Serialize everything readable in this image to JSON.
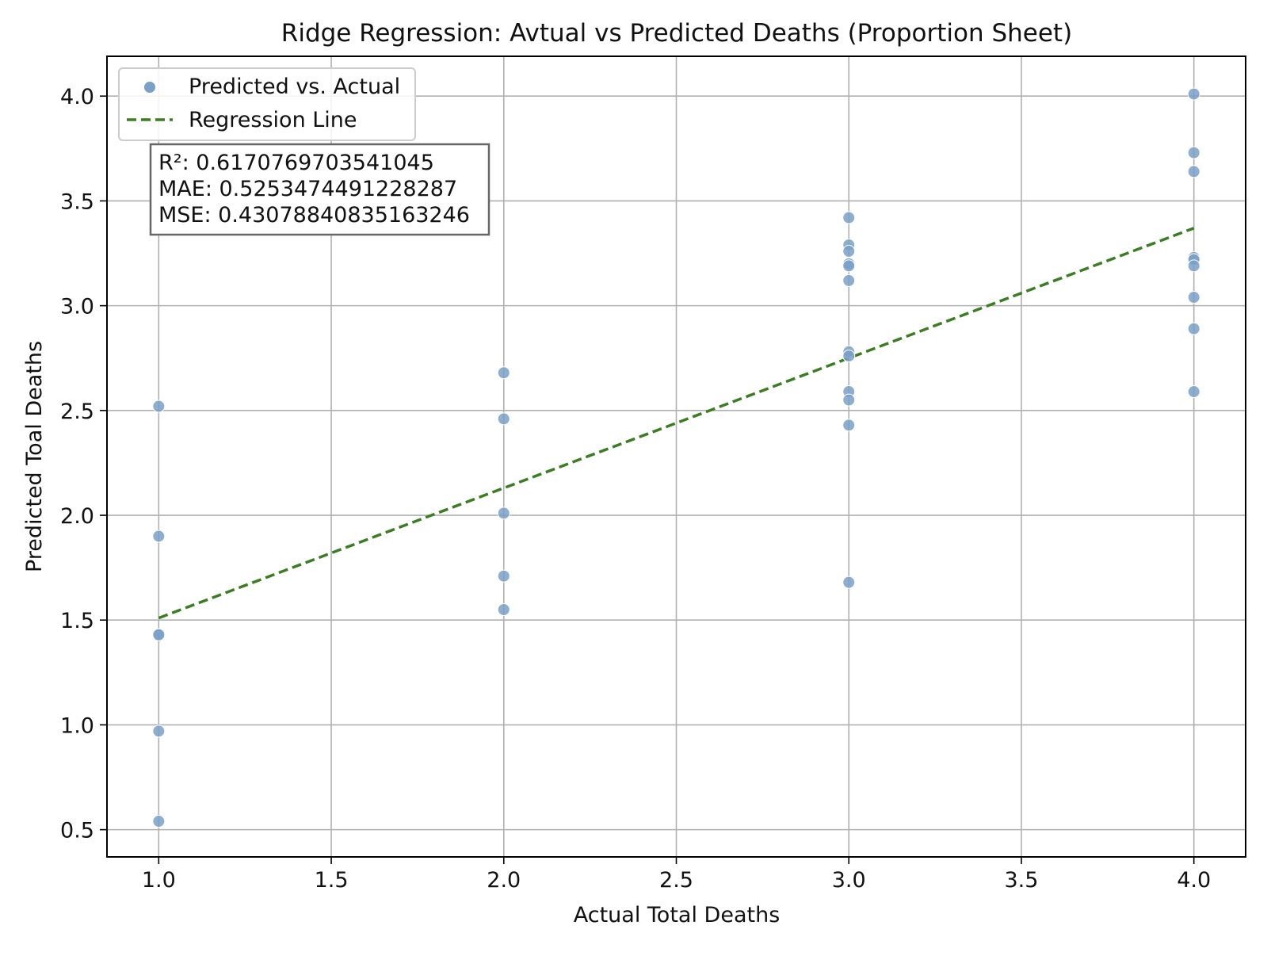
{
  "chart_data": {
    "type": "scatter",
    "title": "Ridge Regression: Avtual vs Predicted Deaths (Proportion Sheet)",
    "xlabel": "Actual Total Deaths",
    "ylabel": "Predicted Toal Deaths",
    "xlim": [
      0.85,
      4.15
    ],
    "ylim": [
      0.37,
      4.19
    ],
    "xticks": [
      1.0,
      1.5,
      2.0,
      2.5,
      3.0,
      3.5,
      4.0
    ],
    "xtick_labels": [
      "1.0",
      "1.5",
      "2.0",
      "2.5",
      "3.0",
      "3.5",
      "4.0"
    ],
    "yticks": [
      0.5,
      1.0,
      1.5,
      2.0,
      2.5,
      3.0,
      3.5,
      4.0
    ],
    "ytick_labels": [
      "0.5",
      "1.0",
      "1.5",
      "2.0",
      "2.5",
      "3.0",
      "3.5",
      "4.0"
    ],
    "grid": true,
    "legend_position": "top-left",
    "series": [
      {
        "name": "Predicted vs. Actual",
        "kind": "scatter",
        "color": "#7aa0c8",
        "points": [
          [
            1.0,
            2.52
          ],
          [
            1.0,
            1.9
          ],
          [
            1.0,
            1.43
          ],
          [
            1.0,
            1.43
          ],
          [
            1.0,
            0.97
          ],
          [
            1.0,
            0.54
          ],
          [
            2.0,
            2.68
          ],
          [
            2.0,
            2.46
          ],
          [
            2.0,
            2.01
          ],
          [
            2.0,
            1.71
          ],
          [
            2.0,
            1.55
          ],
          [
            3.0,
            3.42
          ],
          [
            3.0,
            3.29
          ],
          [
            3.0,
            3.26
          ],
          [
            3.0,
            3.2
          ],
          [
            3.0,
            3.19
          ],
          [
            3.0,
            3.12
          ],
          [
            3.0,
            2.78
          ],
          [
            3.0,
            2.76
          ],
          [
            3.0,
            2.59
          ],
          [
            3.0,
            2.55
          ],
          [
            3.0,
            2.43
          ],
          [
            3.0,
            1.68
          ],
          [
            4.0,
            4.01
          ],
          [
            4.0,
            3.73
          ],
          [
            4.0,
            3.64
          ],
          [
            4.0,
            3.23
          ],
          [
            4.0,
            3.22
          ],
          [
            4.0,
            3.19
          ],
          [
            4.0,
            3.04
          ],
          [
            4.0,
            2.89
          ],
          [
            4.0,
            2.59
          ]
        ]
      },
      {
        "name": "Regression Line",
        "kind": "line",
        "style": "dashed",
        "color": "#3a7d22",
        "points": [
          [
            1.0,
            1.51
          ],
          [
            4.0,
            3.37
          ]
        ]
      }
    ],
    "stats_box": [
      "R²: 0.6170769703541045",
      "MAE: 0.5253474491228287",
      "MSE: 0.43078840835163246"
    ]
  }
}
